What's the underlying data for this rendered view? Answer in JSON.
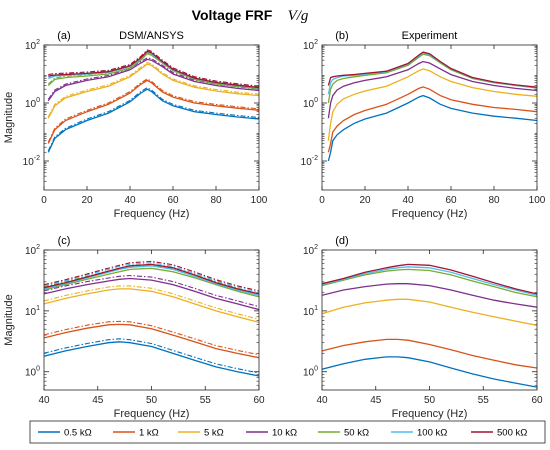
{
  "figure": {
    "title": "Voltage FRF",
    "title_math": "V/g"
  },
  "legend": {
    "entries": [
      {
        "label": "0.5 kΩ",
        "color": "#0072BD"
      },
      {
        "label": "1 kΩ",
        "color": "#D95319"
      },
      {
        "label": "5 kΩ",
        "color": "#EDB120"
      },
      {
        "label": "10 kΩ",
        "color": "#7E2F8E"
      },
      {
        "label": "50 kΩ",
        "color": "#77AC30"
      },
      {
        "label": "100 kΩ",
        "color": "#4DBEEE"
      },
      {
        "label": "500 kΩ",
        "color": "#A2142F"
      }
    ]
  },
  "chart_data": [
    {
      "id": "a",
      "type": "line",
      "panel_label": "(a)",
      "subtitle": "DSM/ANSYS",
      "xlabel": "Frequency (Hz)",
      "ylabel": "Magnitude",
      "xlim": [
        0,
        100
      ],
      "ylim_log10": [
        -3,
        2
      ],
      "yscale": "log",
      "xticks": [
        "0",
        "20",
        "40",
        "60",
        "80",
        "100"
      ],
      "yticks": [
        {
          "base": "10",
          "exp": "-2",
          "value": 0.01
        },
        {
          "base": "10",
          "exp": "0",
          "value": 1
        },
        {
          "base": "10",
          "exp": "2",
          "value": 100
        }
      ],
      "line_styles": [
        "solid (DSM)",
        "dash-dot (ANSYS)"
      ],
      "series": [
        {
          "color": "#0072BD",
          "x": [
            2,
            5,
            10,
            20,
            30,
            40,
            45,
            48,
            50,
            55,
            60,
            70,
            80,
            90,
            100
          ],
          "y": [
            0.02,
            0.06,
            0.12,
            0.25,
            0.45,
            1.1,
            2.2,
            3.0,
            2.5,
            1.2,
            0.8,
            0.5,
            0.4,
            0.33,
            0.28
          ]
        },
        {
          "color": "#D95319",
          "x": [
            2,
            5,
            10,
            20,
            30,
            40,
            45,
            48,
            50,
            55,
            60,
            70,
            80,
            90,
            100
          ],
          "y": [
            0.04,
            0.12,
            0.25,
            0.5,
            0.9,
            2.2,
            4.4,
            6.0,
            5.0,
            2.4,
            1.6,
            1.0,
            0.8,
            0.66,
            0.56
          ]
        },
        {
          "color": "#EDB120",
          "x": [
            2,
            5,
            10,
            20,
            30,
            40,
            45,
            48,
            50,
            55,
            60,
            70,
            80,
            90,
            100
          ],
          "y": [
            0.3,
            0.8,
            1.5,
            2.5,
            3.8,
            8,
            15,
            22,
            20,
            10,
            6,
            3.5,
            2.6,
            2.1,
            1.8
          ]
        },
        {
          "color": "#7E2F8E",
          "x": [
            2,
            5,
            10,
            20,
            30,
            40,
            45,
            48,
            50,
            55,
            60,
            70,
            80,
            90,
            100
          ],
          "y": [
            1.2,
            2.5,
            4,
            6,
            8,
            14,
            24,
            32,
            30,
            18,
            10,
            5.5,
            4,
            3.2,
            2.7
          ]
        },
        {
          "color": "#77AC30",
          "x": [
            2,
            5,
            10,
            20,
            30,
            40,
            45,
            48,
            50,
            55,
            60,
            70,
            80,
            90,
            100
          ],
          "y": [
            4,
            6.5,
            7.5,
            8.5,
            10,
            16,
            30,
            50,
            45,
            24,
            13,
            6.5,
            4.6,
            3.7,
            3.1
          ]
        },
        {
          "color": "#4DBEEE",
          "x": [
            2,
            5,
            10,
            20,
            30,
            40,
            45,
            48,
            50,
            55,
            60,
            70,
            80,
            90,
            100
          ],
          "y": [
            7,
            8.5,
            9,
            10,
            11.5,
            18,
            34,
            56,
            50,
            26,
            14,
            7,
            5,
            4,
            3.3
          ]
        },
        {
          "color": "#A2142F",
          "x": [
            2,
            5,
            10,
            20,
            30,
            40,
            45,
            48,
            50,
            55,
            60,
            70,
            80,
            90,
            100
          ],
          "y": [
            8.5,
            9.2,
            9.6,
            10.5,
            12,
            19,
            36,
            60,
            54,
            27,
            14.5,
            7.2,
            5.1,
            4.1,
            3.4
          ]
        }
      ]
    },
    {
      "id": "b",
      "type": "line",
      "panel_label": "(b)",
      "subtitle": "Experiment",
      "xlabel": "Frequency (Hz)",
      "ylabel": "",
      "xlim": [
        0,
        100
      ],
      "ylim_log10": [
        -3,
        2
      ],
      "yscale": "log",
      "xticks": [
        "0",
        "20",
        "40",
        "60",
        "80",
        "100"
      ],
      "yticks": [
        {
          "base": "10",
          "exp": "-2",
          "value": 0.01
        },
        {
          "base": "10",
          "exp": "0",
          "value": 1
        },
        {
          "base": "10",
          "exp": "2",
          "value": 100
        }
      ],
      "series": [
        {
          "color": "#0072BD",
          "x": [
            3,
            4,
            5,
            7,
            10,
            15,
            20,
            30,
            40,
            45,
            47,
            50,
            55,
            60,
            70,
            80,
            90,
            100
          ],
          "y": [
            0.01,
            0.02,
            0.05,
            0.08,
            0.12,
            0.2,
            0.28,
            0.45,
            1.0,
            1.6,
            1.8,
            1.5,
            0.9,
            0.65,
            0.45,
            0.35,
            0.3,
            0.25
          ]
        },
        {
          "color": "#D95319",
          "x": [
            3,
            4,
            5,
            7,
            10,
            15,
            20,
            30,
            40,
            45,
            47,
            50,
            55,
            60,
            70,
            80,
            90,
            100
          ],
          "y": [
            0.02,
            0.04,
            0.1,
            0.16,
            0.25,
            0.4,
            0.55,
            0.9,
            2.0,
            3.2,
            3.6,
            3.0,
            1.8,
            1.3,
            0.9,
            0.7,
            0.6,
            0.5
          ]
        },
        {
          "color": "#EDB120",
          "x": [
            3,
            4,
            5,
            7,
            10,
            15,
            20,
            30,
            40,
            45,
            47,
            50,
            55,
            60,
            70,
            80,
            90,
            100
          ],
          "y": [
            0.05,
            0.2,
            0.5,
            0.9,
            1.4,
            2.0,
            2.6,
            3.8,
            8,
            13,
            15,
            13,
            8,
            5.5,
            3.4,
            2.5,
            2.0,
            1.7
          ]
        },
        {
          "color": "#7E2F8E",
          "x": [
            3,
            4,
            5,
            7,
            10,
            15,
            20,
            30,
            40,
            45,
            47,
            50,
            55,
            60,
            70,
            80,
            90,
            100
          ],
          "y": [
            0.3,
            1.0,
            1.8,
            2.8,
            3.8,
            5,
            6,
            8,
            14,
            23,
            27,
            24,
            15,
            9.5,
            5.5,
            4,
            3.2,
            2.7
          ]
        },
        {
          "color": "#77AC30",
          "x": [
            3,
            4,
            5,
            7,
            10,
            15,
            20,
            30,
            40,
            45,
            47,
            50,
            55,
            60,
            70,
            80,
            90,
            100
          ],
          "y": [
            1.0,
            3,
            4.5,
            6,
            7,
            8,
            9,
            11,
            20,
            38,
            48,
            43,
            24,
            14,
            7,
            5,
            4,
            3.3
          ]
        },
        {
          "color": "#4DBEEE",
          "x": [
            3,
            4,
            5,
            7,
            10,
            15,
            20,
            30,
            40,
            45,
            47,
            50,
            55,
            60,
            70,
            80,
            90,
            100
          ],
          "y": [
            2,
            5,
            6.5,
            7.5,
            8.5,
            9,
            10,
            12,
            22,
            42,
            53,
            47,
            26,
            15,
            7.4,
            5.2,
            4.1,
            3.4
          ]
        },
        {
          "color": "#A2142F",
          "x": [
            3,
            4,
            5,
            7,
            10,
            15,
            20,
            30,
            40,
            45,
            47,
            50,
            55,
            60,
            70,
            80,
            90,
            100
          ],
          "y": [
            4,
            7.5,
            8,
            8.5,
            9,
            9.6,
            10.5,
            12.5,
            23,
            45,
            57,
            50,
            27,
            15.5,
            7.6,
            5.3,
            4.2,
            3.5
          ]
        }
      ]
    },
    {
      "id": "c",
      "type": "line",
      "panel_label": "(c)",
      "subtitle": "",
      "xlabel": "Frequency (Hz)",
      "ylabel": "Magnitude",
      "xlim": [
        40,
        60
      ],
      "ylim_log10": [
        -0.3,
        2
      ],
      "yscale": "log",
      "xticks": [
        "40",
        "45",
        "50",
        "55",
        "60"
      ],
      "yticks": [
        {
          "base": "10",
          "exp": "0",
          "value": 1
        },
        {
          "base": "10",
          "exp": "1",
          "value": 10
        },
        {
          "base": "10",
          "exp": "2",
          "value": 100
        }
      ],
      "line_styles": [
        "solid (DSM)",
        "dash-dot (ANSYS)"
      ],
      "series": [
        {
          "color": "#0072BD",
          "x": [
            40,
            42,
            44,
            46,
            47,
            48,
            50,
            52,
            54,
            56,
            58,
            60
          ],
          "y": [
            1.8,
            2.2,
            2.6,
            3.0,
            3.1,
            3.0,
            2.6,
            2.0,
            1.55,
            1.2,
            1.0,
            0.85
          ]
        },
        {
          "color": "#D95319",
          "x": [
            40,
            42,
            44,
            46,
            47,
            48,
            50,
            52,
            54,
            56,
            58,
            60
          ],
          "y": [
            3.6,
            4.4,
            5.2,
            5.9,
            6.0,
            5.9,
            5.1,
            4.0,
            3.1,
            2.4,
            2.0,
            1.7
          ]
        },
        {
          "color": "#EDB120",
          "x": [
            40,
            42,
            44,
            46,
            47,
            48,
            50,
            52,
            54,
            56,
            58,
            60
          ],
          "y": [
            13,
            16,
            19,
            22,
            23,
            23,
            21,
            17,
            13,
            10,
            8,
            6.5
          ]
        },
        {
          "color": "#7E2F8E",
          "x": [
            40,
            42,
            44,
            46,
            47,
            48,
            50,
            52,
            54,
            56,
            58,
            60
          ],
          "y": [
            19,
            23,
            27,
            31,
            33,
            34,
            32,
            27,
            21,
            16,
            13,
            10.5
          ]
        },
        {
          "color": "#77AC30",
          "x": [
            40,
            42,
            44,
            46,
            47,
            48,
            50,
            52,
            54,
            56,
            58,
            60
          ],
          "y": [
            22,
            27,
            33,
            40,
            44,
            48,
            50,
            44,
            35,
            27,
            21,
            17
          ]
        },
        {
          "color": "#4DBEEE",
          "x": [
            40,
            42,
            44,
            46,
            47,
            48,
            50,
            52,
            54,
            56,
            58,
            60
          ],
          "y": [
            23,
            28,
            35,
            43,
            48,
            52,
            55,
            48,
            37,
            28,
            22,
            18
          ]
        },
        {
          "color": "#A2142F",
          "x": [
            40,
            42,
            44,
            46,
            47,
            48,
            50,
            52,
            54,
            56,
            58,
            60
          ],
          "y": [
            24,
            29,
            36,
            45,
            50,
            55,
            58,
            51,
            39,
            29,
            23,
            19
          ]
        }
      ]
    },
    {
      "id": "d",
      "type": "line",
      "panel_label": "(d)",
      "subtitle": "",
      "xlabel": "Frequency (Hz)",
      "ylabel": "",
      "xlim": [
        40,
        60
      ],
      "ylim_log10": [
        -0.3,
        2
      ],
      "yscale": "log",
      "xticks": [
        "40",
        "45",
        "50",
        "55",
        "60"
      ],
      "yticks": [
        {
          "base": "10",
          "exp": "0",
          "value": 1
        },
        {
          "base": "10",
          "exp": "1",
          "value": 10
        },
        {
          "base": "10",
          "exp": "2",
          "value": 100
        }
      ],
      "series": [
        {
          "color": "#0072BD",
          "x": [
            40,
            42,
            44,
            46,
            47,
            48,
            50,
            52,
            54,
            56,
            58,
            60
          ],
          "y": [
            1.1,
            1.35,
            1.6,
            1.75,
            1.75,
            1.7,
            1.45,
            1.15,
            0.92,
            0.76,
            0.65,
            0.56
          ]
        },
        {
          "color": "#D95319",
          "x": [
            40,
            42,
            44,
            46,
            47,
            48,
            50,
            52,
            54,
            56,
            58,
            60
          ],
          "y": [
            2.2,
            2.7,
            3.1,
            3.4,
            3.4,
            3.3,
            2.8,
            2.3,
            1.85,
            1.55,
            1.3,
            1.15
          ]
        },
        {
          "color": "#EDB120",
          "x": [
            40,
            42,
            44,
            46,
            47,
            48,
            50,
            52,
            54,
            56,
            58,
            60
          ],
          "y": [
            9,
            11.5,
            13.5,
            15,
            15.5,
            15.5,
            14,
            11.5,
            9.5,
            8,
            6.8,
            5.8
          ]
        },
        {
          "color": "#7E2F8E",
          "x": [
            40,
            42,
            44,
            46,
            47,
            48,
            50,
            52,
            54,
            56,
            58,
            60
          ],
          "y": [
            18,
            22,
            25,
            27.5,
            28,
            28,
            26,
            22,
            18,
            15,
            13,
            11.5
          ]
        },
        {
          "color": "#77AC30",
          "x": [
            40,
            42,
            44,
            46,
            47,
            48,
            50,
            52,
            54,
            56,
            58,
            60
          ],
          "y": [
            26,
            32,
            39,
            45,
            47,
            48,
            46,
            39,
            31,
            25,
            20,
            17
          ]
        },
        {
          "color": "#4DBEEE",
          "x": [
            40,
            42,
            44,
            46,
            47,
            48,
            50,
            52,
            54,
            56,
            58,
            60
          ],
          "y": [
            27,
            33,
            41,
            48,
            51,
            53,
            51,
            43,
            34,
            27,
            22,
            18
          ]
        },
        {
          "color": "#A2142F",
          "x": [
            40,
            42,
            44,
            46,
            47,
            48,
            50,
            52,
            54,
            56,
            58,
            60
          ],
          "y": [
            28,
            34,
            43,
            51,
            55,
            58,
            56,
            47,
            37,
            29,
            23,
            19
          ]
        }
      ]
    }
  ]
}
